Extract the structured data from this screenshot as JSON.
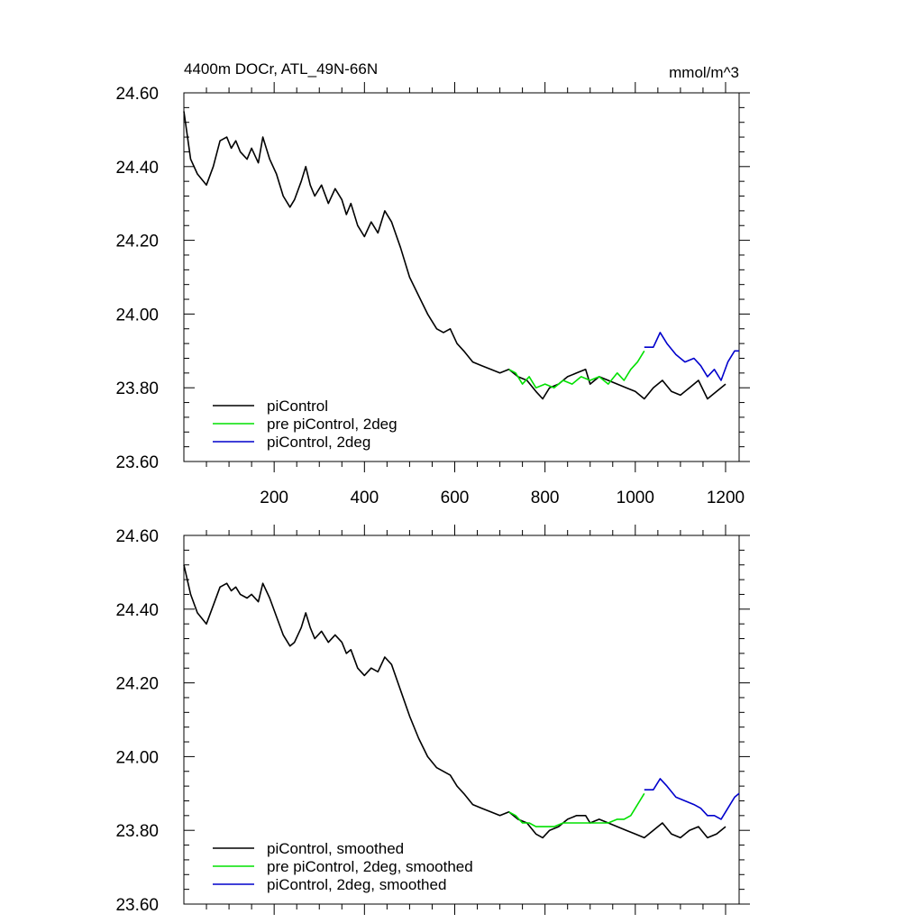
{
  "chart_data": [
    {
      "type": "line",
      "title": "4400m DOCr, ATL_49N-66N",
      "units": "mmol/m^3",
      "xlim": [
        0,
        1230
      ],
      "ylim": [
        23.6,
        24.6
      ],
      "xticks": [
        200,
        400,
        600,
        800,
        1000,
        1200
      ],
      "xtick_labels": [
        "200",
        "400",
        "600",
        "800",
        "1000",
        "1200"
      ],
      "yticks": [
        23.6,
        23.8,
        24.0,
        24.2,
        24.4,
        24.6
      ],
      "ytick_labels": [
        "23.60",
        "23.80",
        "24.00",
        "24.20",
        "24.40",
        "24.60"
      ],
      "legend_position": "bottom-left",
      "series": [
        {
          "name": "piControl",
          "color": "#000000",
          "x": [
            0,
            15,
            30,
            50,
            65,
            80,
            95,
            105,
            115,
            125,
            140,
            150,
            165,
            175,
            190,
            205,
            220,
            235,
            245,
            260,
            270,
            280,
            290,
            305,
            320,
            335,
            350,
            360,
            370,
            385,
            400,
            415,
            430,
            445,
            460,
            480,
            500,
            520,
            540,
            560,
            575,
            590,
            605,
            620,
            640,
            660,
            680,
            700,
            720,
            740,
            760,
            780,
            795,
            810,
            830,
            850,
            870,
            890,
            900,
            920,
            940,
            960,
            980,
            1000,
            1020,
            1040,
            1060,
            1080,
            1100,
            1120,
            1140,
            1160,
            1180,
            1200
          ],
          "values": [
            24.55,
            24.42,
            24.38,
            24.35,
            24.4,
            24.47,
            24.48,
            24.45,
            24.47,
            24.44,
            24.42,
            24.45,
            24.41,
            24.48,
            24.42,
            24.38,
            24.32,
            24.29,
            24.31,
            24.36,
            24.4,
            24.35,
            24.32,
            24.35,
            24.3,
            24.34,
            24.31,
            24.27,
            24.3,
            24.24,
            24.21,
            24.25,
            24.22,
            24.28,
            24.25,
            24.18,
            24.1,
            24.05,
            24.0,
            23.96,
            23.95,
            23.96,
            23.92,
            23.9,
            23.87,
            23.86,
            23.85,
            23.84,
            23.85,
            23.83,
            23.82,
            23.79,
            23.77,
            23.8,
            23.81,
            23.83,
            23.84,
            23.85,
            23.81,
            23.83,
            23.82,
            23.81,
            23.8,
            23.79,
            23.77,
            23.8,
            23.82,
            23.79,
            23.78,
            23.8,
            23.82,
            23.77,
            23.79,
            23.81
          ]
        },
        {
          "name": "pre piControl, 2deg",
          "color": "#00e000",
          "x": [
            720,
            735,
            750,
            765,
            780,
            800,
            820,
            840,
            860,
            880,
            900,
            920,
            940,
            960,
            975,
            990,
            1005,
            1020
          ],
          "values": [
            23.85,
            23.84,
            23.81,
            23.83,
            23.8,
            23.81,
            23.8,
            23.82,
            23.81,
            23.83,
            23.82,
            23.83,
            23.81,
            23.84,
            23.82,
            23.85,
            23.87,
            23.9
          ]
        },
        {
          "name": "piControl, 2deg",
          "color": "#0000cc",
          "x": [
            1020,
            1040,
            1055,
            1070,
            1090,
            1110,
            1130,
            1145,
            1160,
            1175,
            1190,
            1205,
            1220,
            1230
          ],
          "values": [
            23.91,
            23.91,
            23.95,
            23.92,
            23.89,
            23.87,
            23.88,
            23.86,
            23.83,
            23.85,
            23.82,
            23.87,
            23.9,
            23.9
          ]
        }
      ]
    },
    {
      "type": "line",
      "xlim": [
        0,
        1230
      ],
      "ylim": [
        23.6,
        24.6
      ],
      "xticks": [
        200,
        400,
        600,
        800,
        1000,
        1200
      ],
      "yticks": [
        23.6,
        23.8,
        24.0,
        24.2,
        24.4,
        24.6
      ],
      "ytick_labels": [
        "23.60",
        "23.80",
        "24.00",
        "24.20",
        "24.40",
        "24.60"
      ],
      "legend_position": "bottom-left",
      "series": [
        {
          "name": "piControl, smoothed",
          "color": "#000000",
          "x": [
            0,
            15,
            30,
            50,
            65,
            80,
            95,
            105,
            115,
            125,
            140,
            150,
            165,
            175,
            190,
            205,
            220,
            235,
            245,
            260,
            270,
            280,
            290,
            305,
            320,
            335,
            350,
            360,
            370,
            385,
            400,
            415,
            430,
            445,
            460,
            480,
            500,
            520,
            540,
            560,
            575,
            590,
            605,
            620,
            640,
            660,
            680,
            700,
            720,
            740,
            760,
            780,
            795,
            810,
            830,
            850,
            870,
            890,
            900,
            920,
            940,
            960,
            980,
            1000,
            1020,
            1040,
            1060,
            1080,
            1100,
            1120,
            1140,
            1160,
            1180,
            1200
          ],
          "values": [
            24.52,
            24.44,
            24.39,
            24.36,
            24.41,
            24.46,
            24.47,
            24.45,
            24.46,
            24.44,
            24.43,
            24.44,
            24.42,
            24.47,
            24.43,
            24.38,
            24.33,
            24.3,
            24.31,
            24.35,
            24.39,
            24.35,
            24.32,
            24.34,
            24.31,
            24.33,
            24.31,
            24.28,
            24.29,
            24.24,
            24.22,
            24.24,
            24.23,
            24.27,
            24.25,
            24.18,
            24.11,
            24.05,
            24.0,
            23.97,
            23.96,
            23.95,
            23.92,
            23.9,
            23.87,
            23.86,
            23.85,
            23.84,
            23.85,
            23.83,
            23.82,
            23.79,
            23.78,
            23.8,
            23.81,
            23.83,
            23.84,
            23.84,
            23.82,
            23.83,
            23.82,
            23.81,
            23.8,
            23.79,
            23.78,
            23.8,
            23.82,
            23.79,
            23.78,
            23.8,
            23.81,
            23.78,
            23.79,
            23.81
          ]
        },
        {
          "name": "pre piControl, 2deg, smoothed",
          "color": "#00e000",
          "x": [
            720,
            735,
            750,
            765,
            780,
            800,
            820,
            840,
            860,
            880,
            900,
            920,
            940,
            960,
            975,
            990,
            1005,
            1020
          ],
          "values": [
            23.85,
            23.84,
            23.82,
            23.82,
            23.81,
            23.81,
            23.81,
            23.82,
            23.82,
            23.82,
            23.82,
            23.82,
            23.82,
            23.83,
            23.83,
            23.84,
            23.87,
            23.9
          ]
        },
        {
          "name": "piControl, 2deg, smoothed",
          "color": "#0000cc",
          "x": [
            1020,
            1040,
            1055,
            1070,
            1090,
            1110,
            1130,
            1145,
            1160,
            1175,
            1190,
            1205,
            1220,
            1230
          ],
          "values": [
            23.91,
            23.91,
            23.94,
            23.92,
            23.89,
            23.88,
            23.87,
            23.86,
            23.84,
            23.84,
            23.83,
            23.86,
            23.89,
            23.9
          ]
        }
      ]
    }
  ]
}
